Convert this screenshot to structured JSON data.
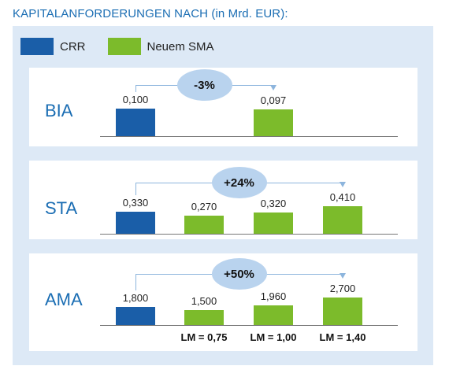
{
  "title": "KAPITALANFORDERUNGEN NACH (in Mrd. EUR):",
  "colors": {
    "crr": "#1a5ea8",
    "sma": "#7cbb2b",
    "accent_text": "#1a6db3",
    "oval": "#b9d3ee"
  },
  "legend": [
    {
      "name": "CRR",
      "color": "#1a5ea8"
    },
    {
      "name": "Neuem SMA",
      "color": "#7cbb2b"
    }
  ],
  "chart_data": [
    {
      "type": "bar",
      "label": "BIA",
      "ylim": [
        0,
        0.1
      ],
      "bars": [
        {
          "value": 0.1,
          "label": "0,100",
          "series": "CRR",
          "slot": 0
        },
        {
          "value": 0.097,
          "label": "0,097",
          "series": "Neuem SMA",
          "slot": 2
        }
      ],
      "change": "-3%",
      "arrow_slots": [
        0,
        2
      ]
    },
    {
      "type": "bar",
      "label": "STA",
      "ylim": [
        0,
        0.41
      ],
      "bars": [
        {
          "value": 0.33,
          "label": "0,330",
          "series": "CRR",
          "slot": 0
        },
        {
          "value": 0.27,
          "label": "0,270",
          "series": "Neuem SMA",
          "slot": 1
        },
        {
          "value": 0.32,
          "label": "0,320",
          "series": "Neuem SMA",
          "slot": 2
        },
        {
          "value": 0.41,
          "label": "0,410",
          "series": "Neuem SMA",
          "slot": 3
        }
      ],
      "change": "+24%",
      "arrow_slots": [
        0,
        3
      ]
    },
    {
      "type": "bar",
      "label": "AMA",
      "ylim": [
        0,
        2.7
      ],
      "bars": [
        {
          "value": 1.8,
          "label": "1,800",
          "series": "CRR",
          "slot": 0
        },
        {
          "value": 1.5,
          "label": "1,500",
          "series": "Neuem SMA",
          "slot": 1
        },
        {
          "value": 1.96,
          "label": "1,960",
          "series": "Neuem SMA",
          "slot": 2
        },
        {
          "value": 2.7,
          "label": "2,700",
          "series": "Neuem SMA",
          "slot": 3
        }
      ],
      "change": "+50%",
      "arrow_slots": [
        0,
        3
      ],
      "lm_labels": [
        {
          "slot": 1,
          "text": "LM = 0,75"
        },
        {
          "slot": 2,
          "text": "LM = 1,00"
        },
        {
          "slot": 3,
          "text": "LM = 1,40"
        }
      ]
    }
  ]
}
